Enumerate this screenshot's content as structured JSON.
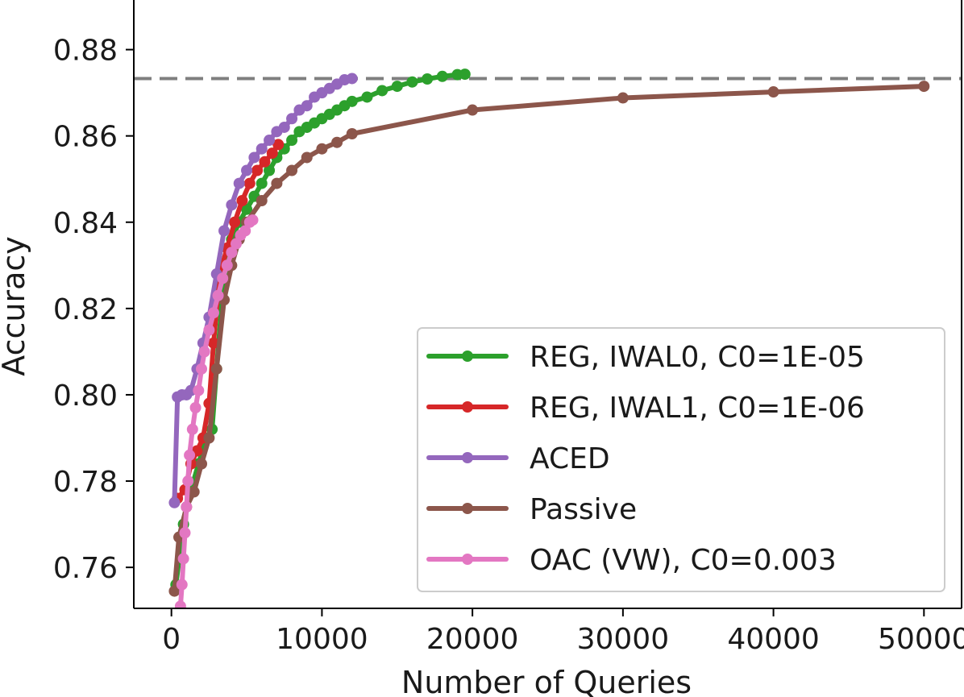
{
  "chart_data": {
    "type": "line",
    "xlabel": "Number of Queries",
    "ylabel": "Accuracy",
    "xlim": [
      -2500,
      52500
    ],
    "ylim": [
      0.7505,
      0.8915
    ],
    "x_ticks": [
      0,
      10000,
      20000,
      30000,
      40000,
      50000
    ],
    "x_tick_labels": [
      "0",
      "10000",
      "20000",
      "30000",
      "40000",
      "50000"
    ],
    "y_ticks": [
      0.76,
      0.78,
      0.8,
      0.82,
      0.84,
      0.86,
      0.88
    ],
    "y_tick_labels": [
      "0.76",
      "0.78",
      "0.80",
      "0.82",
      "0.84",
      "0.86",
      "0.88"
    ],
    "reference_line": {
      "y": 0.8733,
      "color": "#7f7f7f",
      "style": "dashed"
    },
    "legend_position": "lower-right",
    "series": [
      {
        "name": "REG, IWAL0, C0=1E-05",
        "color": "#2ca02c",
        "x": [
          300,
          800,
          1300,
          1800,
          2300,
          2700,
          3000,
          3500,
          4000,
          4500,
          5000,
          5500,
          6000,
          6500,
          7000,
          7500,
          8000,
          8500,
          9000,
          9500,
          10000,
          10500,
          11000,
          11500,
          12000,
          13000,
          14000,
          15000,
          16000,
          17000,
          18000,
          19000,
          19500
        ],
        "y": [
          0.756,
          0.77,
          0.778,
          0.784,
          0.79,
          0.792,
          0.806,
          0.828,
          0.836,
          0.84,
          0.843,
          0.846,
          0.849,
          0.852,
          0.855,
          0.857,
          0.859,
          0.861,
          0.862,
          0.863,
          0.864,
          0.865,
          0.866,
          0.867,
          0.868,
          0.869,
          0.8705,
          0.8715,
          0.8725,
          0.8732,
          0.8738,
          0.8742,
          0.8743
        ]
      },
      {
        "name": "REG, IWAL1, C0=1E-06",
        "color": "#d62728",
        "x": [
          400,
          900,
          1300,
          1700,
          2100,
          2500,
          2800,
          3200,
          3700,
          4200,
          4700,
          5200,
          5700,
          6200,
          6700,
          7100
        ],
        "y": [
          0.776,
          0.778,
          0.784,
          0.787,
          0.79,
          0.798,
          0.812,
          0.828,
          0.834,
          0.84,
          0.845,
          0.849,
          0.852,
          0.854,
          0.856,
          0.858
        ]
      },
      {
        "name": "ACED",
        "color": "#9467bd",
        "x": [
          200,
          400,
          700,
          1000,
          1300,
          1700,
          2100,
          2500,
          3000,
          3500,
          4000,
          4500,
          5000,
          5500,
          6000,
          6500,
          7000,
          7500,
          8000,
          8500,
          9000,
          9500,
          10000,
          10500,
          11000,
          11500,
          12000
        ],
        "y": [
          0.775,
          0.7995,
          0.8,
          0.8,
          0.801,
          0.806,
          0.812,
          0.818,
          0.828,
          0.838,
          0.844,
          0.849,
          0.852,
          0.855,
          0.857,
          0.859,
          0.861,
          0.862,
          0.864,
          0.866,
          0.867,
          0.869,
          0.87,
          0.871,
          0.872,
          0.873,
          0.8733
        ]
      },
      {
        "name": "Passive",
        "color": "#8c564b",
        "x": [
          200,
          500,
          1000,
          1500,
          2000,
          2500,
          3000,
          3500,
          4000,
          4500,
          5000,
          6000,
          7000,
          8000,
          9000,
          10000,
          11000,
          12000,
          20000,
          30000,
          40000,
          50000
        ],
        "y": [
          0.7545,
          0.767,
          0.774,
          0.7775,
          0.784,
          0.79,
          0.806,
          0.822,
          0.83,
          0.836,
          0.84,
          0.845,
          0.849,
          0.852,
          0.855,
          0.857,
          0.8585,
          0.8605,
          0.866,
          0.8688,
          0.8702,
          0.8715
        ]
      },
      {
        "name": "OAC (VW), C0=0.003",
        "color": "#e377c2",
        "x": [
          600,
          700,
          800,
          900,
          1000,
          1100,
          1200,
          1400,
          1600,
          1800,
          2000,
          2200,
          2500,
          2800,
          3100,
          3400,
          3700,
          4000,
          4300,
          4600,
          4900,
          5200,
          5400
        ],
        "y": [
          0.751,
          0.756,
          0.762,
          0.768,
          0.774,
          0.78,
          0.786,
          0.792,
          0.797,
          0.801,
          0.806,
          0.81,
          0.815,
          0.819,
          0.823,
          0.827,
          0.83,
          0.833,
          0.835,
          0.837,
          0.838,
          0.84,
          0.8405
        ]
      }
    ]
  }
}
